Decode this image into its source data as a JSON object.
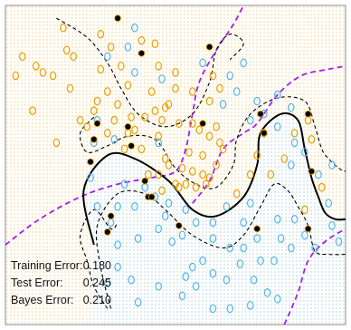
{
  "chart_data": {
    "type": "scatter",
    "title": "",
    "xlabel": "",
    "ylabel": "",
    "xlim": [
      0,
      1
    ],
    "ylim": [
      0,
      1
    ],
    "grid": false,
    "legend": "none",
    "colors": {
      "class_orange": "#E69F00",
      "class_blue": "#56B4E9",
      "support_vector": "#000000",
      "bayes_boundary": "#A020F0",
      "frame": "#888888"
    },
    "series": [
      {
        "class": "orange",
        "points": [
          [
            0.17,
            0.93
          ],
          [
            0.28,
            0.91
          ],
          [
            0.18,
            0.86
          ],
          [
            0.2,
            0.84
          ],
          [
            0.31,
            0.87
          ],
          [
            0.4,
            0.89
          ],
          [
            0.44,
            0.88
          ],
          [
            0.05,
            0.84
          ],
          [
            0.09,
            0.81
          ],
          [
            0.11,
            0.79
          ],
          [
            0.14,
            0.78
          ],
          [
            0.03,
            0.78
          ],
          [
            0.28,
            0.8
          ],
          [
            0.34,
            0.81
          ],
          [
            0.45,
            0.81
          ],
          [
            0.5,
            0.79
          ],
          [
            0.61,
            0.78
          ],
          [
            0.63,
            0.74
          ],
          [
            0.36,
            0.75
          ],
          [
            0.3,
            0.73
          ],
          [
            0.19,
            0.74
          ],
          [
            0.27,
            0.7
          ],
          [
            0.43,
            0.73
          ],
          [
            0.5,
            0.74
          ],
          [
            0.55,
            0.73
          ],
          [
            0.6,
            0.7
          ],
          [
            0.48,
            0.69
          ],
          [
            0.47,
            0.68
          ],
          [
            0.44,
            0.67
          ],
          [
            0.08,
            0.67
          ],
          [
            0.22,
            0.64
          ],
          [
            0.24,
            0.62
          ],
          [
            0.32,
            0.64
          ],
          [
            0.37,
            0.65
          ],
          [
            0.41,
            0.65
          ],
          [
            0.46,
            0.64
          ],
          [
            0.51,
            0.63
          ],
          [
            0.55,
            0.63
          ],
          [
            0.57,
            0.61
          ],
          [
            0.62,
            0.62
          ],
          [
            0.38,
            0.61
          ],
          [
            0.36,
            0.6
          ],
          [
            0.3,
            0.6
          ],
          [
            0.6,
            0.59
          ],
          [
            0.63,
            0.57
          ],
          [
            0.64,
            0.55
          ],
          [
            0.15,
            0.57
          ],
          [
            0.35,
            0.55
          ],
          [
            0.4,
            0.55
          ],
          [
            0.54,
            0.54
          ],
          [
            0.58,
            0.53
          ],
          [
            0.47,
            0.52
          ],
          [
            0.62,
            0.5
          ],
          [
            0.48,
            0.5
          ],
          [
            0.52,
            0.49
          ],
          [
            0.55,
            0.48
          ],
          [
            0.58,
            0.47
          ],
          [
            0.6,
            0.46
          ],
          [
            0.45,
            0.47
          ],
          [
            0.42,
            0.47
          ],
          [
            0.5,
            0.44
          ],
          [
            0.51,
            0.43
          ],
          [
            0.53,
            0.44
          ],
          [
            0.56,
            0.43
          ],
          [
            0.59,
            0.44
          ],
          [
            0.46,
            0.42
          ],
          [
            0.68,
            0.41
          ],
          [
            0.72,
            0.47
          ],
          [
            0.74,
            0.53
          ],
          [
            0.78,
            0.47
          ],
          [
            0.82,
            0.52
          ],
          [
            0.76,
            0.6
          ],
          [
            0.85,
            0.6
          ],
          [
            0.9,
            0.58
          ],
          [
            0.89,
            0.64
          ],
          [
            0.88,
            0.36
          ],
          [
            0.93,
            0.43
          ],
          [
            0.45,
            0.59
          ],
          [
            0.33,
            0.69
          ],
          [
            0.26,
            0.67
          ]
        ]
      },
      {
        "class": "blue",
        "points": [
          [
            0.38,
            0.93
          ],
          [
            0.36,
            0.87
          ],
          [
            0.3,
            0.84
          ],
          [
            0.38,
            0.79
          ],
          [
            0.46,
            0.77
          ],
          [
            0.58,
            0.82
          ],
          [
            0.66,
            0.78
          ],
          [
            0.7,
            0.82
          ],
          [
            0.64,
            0.69
          ],
          [
            0.68,
            0.73
          ],
          [
            0.74,
            0.7
          ],
          [
            0.8,
            0.72
          ],
          [
            0.84,
            0.68
          ],
          [
            0.72,
            0.64
          ],
          [
            0.76,
            0.66
          ],
          [
            0.8,
            0.62
          ],
          [
            0.85,
            0.57
          ],
          [
            0.88,
            0.54
          ],
          [
            0.84,
            0.5
          ],
          [
            0.92,
            0.47
          ],
          [
            0.96,
            0.5
          ],
          [
            0.95,
            0.38
          ],
          [
            0.96,
            0.31
          ],
          [
            0.98,
            0.26
          ],
          [
            0.27,
            0.64
          ],
          [
            0.32,
            0.58
          ],
          [
            0.26,
            0.57
          ],
          [
            0.45,
            0.57
          ],
          [
            0.35,
            0.44
          ],
          [
            0.41,
            0.43
          ],
          [
            0.38,
            0.37
          ],
          [
            0.33,
            0.37
          ],
          [
            0.48,
            0.38
          ],
          [
            0.53,
            0.36
          ],
          [
            0.47,
            0.34
          ],
          [
            0.44,
            0.4
          ],
          [
            0.45,
            0.3
          ],
          [
            0.49,
            0.26
          ],
          [
            0.52,
            0.28
          ],
          [
            0.56,
            0.32
          ],
          [
            0.61,
            0.32
          ],
          [
            0.65,
            0.37
          ],
          [
            0.7,
            0.32
          ],
          [
            0.72,
            0.38
          ],
          [
            0.74,
            0.27
          ],
          [
            0.8,
            0.33
          ],
          [
            0.85,
            0.33
          ],
          [
            0.81,
            0.27
          ],
          [
            0.88,
            0.28
          ],
          [
            0.91,
            0.24
          ],
          [
            0.84,
            0.24
          ],
          [
            0.79,
            0.2
          ],
          [
            0.75,
            0.2
          ],
          [
            0.7,
            0.24
          ],
          [
            0.66,
            0.24
          ],
          [
            0.61,
            0.27
          ],
          [
            0.58,
            0.2
          ],
          [
            0.55,
            0.18
          ],
          [
            0.53,
            0.15
          ],
          [
            0.56,
            0.12
          ],
          [
            0.61,
            0.16
          ],
          [
            0.65,
            0.14
          ],
          [
            0.69,
            0.19
          ],
          [
            0.73,
            0.14
          ],
          [
            0.77,
            0.1
          ],
          [
            0.8,
            0.08
          ],
          [
            0.72,
            0.06
          ],
          [
            0.66,
            0.05
          ],
          [
            0.61,
            0.05
          ],
          [
            0.52,
            0.09
          ],
          [
            0.45,
            0.12
          ],
          [
            0.39,
            0.07
          ],
          [
            0.37,
            0.14
          ],
          [
            0.33,
            0.18
          ],
          [
            0.3,
            0.13
          ],
          [
            0.39,
            0.27
          ],
          [
            0.33,
            0.25
          ],
          [
            0.31,
            0.32
          ],
          [
            0.27,
            0.37
          ],
          [
            0.25,
            0.46
          ]
        ]
      },
      {
        "class": "support_vector",
        "points": [
          [
            0.33,
            0.96
          ],
          [
            0.4,
            0.85
          ],
          [
            0.6,
            0.87
          ],
          [
            0.26,
            0.58
          ],
          [
            0.27,
            0.63
          ],
          [
            0.36,
            0.62
          ],
          [
            0.37,
            0.56
          ],
          [
            0.58,
            0.63
          ],
          [
            0.25,
            0.51
          ],
          [
            0.41,
            0.45
          ],
          [
            0.42,
            0.4
          ],
          [
            0.43,
            0.4
          ],
          [
            0.75,
            0.66
          ],
          [
            0.76,
            0.6
          ],
          [
            0.89,
            0.66
          ],
          [
            0.9,
            0.48
          ],
          [
            0.51,
            0.31
          ],
          [
            0.74,
            0.3
          ],
          [
            0.89,
            0.3
          ],
          [
            0.3,
            0.29
          ],
          [
            0.31,
            0.34
          ]
        ]
      }
    ],
    "boundaries": {
      "svm_boundary": [
        [
          0.26,
          0.25
        ],
        [
          0.23,
          0.42
        ],
        [
          0.3,
          0.53
        ],
        [
          0.38,
          0.52
        ],
        [
          0.48,
          0.45
        ],
        [
          0.55,
          0.36
        ],
        [
          0.62,
          0.34
        ],
        [
          0.7,
          0.4
        ],
        [
          0.74,
          0.5
        ],
        [
          0.75,
          0.6
        ],
        [
          0.81,
          0.66
        ],
        [
          0.86,
          0.64
        ],
        [
          0.88,
          0.55
        ],
        [
          0.9,
          0.46
        ],
        [
          0.92,
          0.4
        ],
        [
          0.94,
          0.35
        ],
        [
          0.97,
          0.33
        ],
        [
          1.0,
          0.33
        ]
      ],
      "margin_lines": [
        [
          [
            0.15,
            0.96
          ],
          [
            0.24,
            0.9
          ],
          [
            0.3,
            0.82
          ],
          [
            0.34,
            0.74
          ],
          [
            0.39,
            0.66
          ],
          [
            0.47,
            0.62
          ],
          [
            0.55,
            0.66
          ],
          [
            0.6,
            0.76
          ],
          [
            0.62,
            0.86
          ],
          [
            0.66,
            0.91
          ],
          [
            0.7,
            0.88
          ],
          [
            0.66,
            0.83
          ]
        ],
        [
          [
            0.26,
            0.65
          ],
          [
            0.22,
            0.6
          ],
          [
            0.24,
            0.54
          ],
          [
            0.3,
            0.56
          ],
          [
            0.36,
            0.59
          ],
          [
            0.44,
            0.58
          ],
          [
            0.5,
            0.49
          ],
          [
            0.56,
            0.44
          ],
          [
            0.62,
            0.43
          ],
          [
            0.67,
            0.5
          ],
          [
            0.68,
            0.58
          ],
          [
            0.72,
            0.66
          ],
          [
            0.8,
            0.71
          ],
          [
            0.88,
            0.7
          ],
          [
            0.91,
            0.62
          ],
          [
            0.93,
            0.55
          ],
          [
            0.95,
            0.52
          ],
          [
            0.98,
            0.49
          ],
          [
            1.0,
            0.48
          ]
        ],
        [
          [
            0.31,
            0.05
          ],
          [
            0.28,
            0.18
          ],
          [
            0.27,
            0.31
          ],
          [
            0.33,
            0.41
          ],
          [
            0.41,
            0.41
          ],
          [
            0.47,
            0.36
          ],
          [
            0.55,
            0.28
          ],
          [
            0.64,
            0.24
          ],
          [
            0.7,
            0.28
          ],
          [
            0.75,
            0.37
          ],
          [
            0.79,
            0.44
          ],
          [
            0.83,
            0.42
          ],
          [
            0.86,
            0.37
          ],
          [
            0.89,
            0.31
          ],
          [
            0.91,
            0.23
          ],
          [
            0.95,
            0.22
          ],
          [
            1.0,
            0.22
          ]
        ],
        [
          [
            0.3,
            0.05
          ],
          [
            0.26,
            0.12
          ],
          [
            0.24,
            0.2
          ],
          [
            0.22,
            0.28
          ],
          [
            0.26,
            0.36
          ],
          [
            0.31,
            0.3
          ],
          [
            0.33,
            0.32
          ]
        ]
      ],
      "bayes_boundary": [
        [
          [
            0.0,
            0.25
          ],
          [
            0.1,
            0.33
          ],
          [
            0.22,
            0.4
          ],
          [
            0.33,
            0.44
          ],
          [
            0.43,
            0.46
          ],
          [
            0.5,
            0.48
          ],
          [
            0.53,
            0.55
          ],
          [
            0.55,
            0.66
          ],
          [
            0.57,
            0.76
          ],
          [
            0.62,
            0.86
          ],
          [
            0.67,
            0.94
          ],
          [
            0.7,
            1.0
          ]
        ],
        [
          [
            0.55,
            0.38
          ],
          [
            0.6,
            0.45
          ],
          [
            0.64,
            0.55
          ],
          [
            0.7,
            0.6
          ],
          [
            0.74,
            0.63
          ],
          [
            0.8,
            0.72
          ],
          [
            0.87,
            0.78
          ],
          [
            0.95,
            0.8
          ],
          [
            1.0,
            0.81
          ]
        ],
        [
          [
            0.82,
            0.0
          ],
          [
            0.86,
            0.1
          ],
          [
            0.89,
            0.2
          ],
          [
            0.94,
            0.26
          ],
          [
            1.0,
            0.3
          ]
        ]
      ]
    },
    "statistics": [
      {
        "label": "Training Error:",
        "value": "0.180"
      },
      {
        "label": "Test Error:",
        "value": "0.245"
      },
      {
        "label": "Bayes Error:",
        "value": "0.210"
      }
    ]
  }
}
